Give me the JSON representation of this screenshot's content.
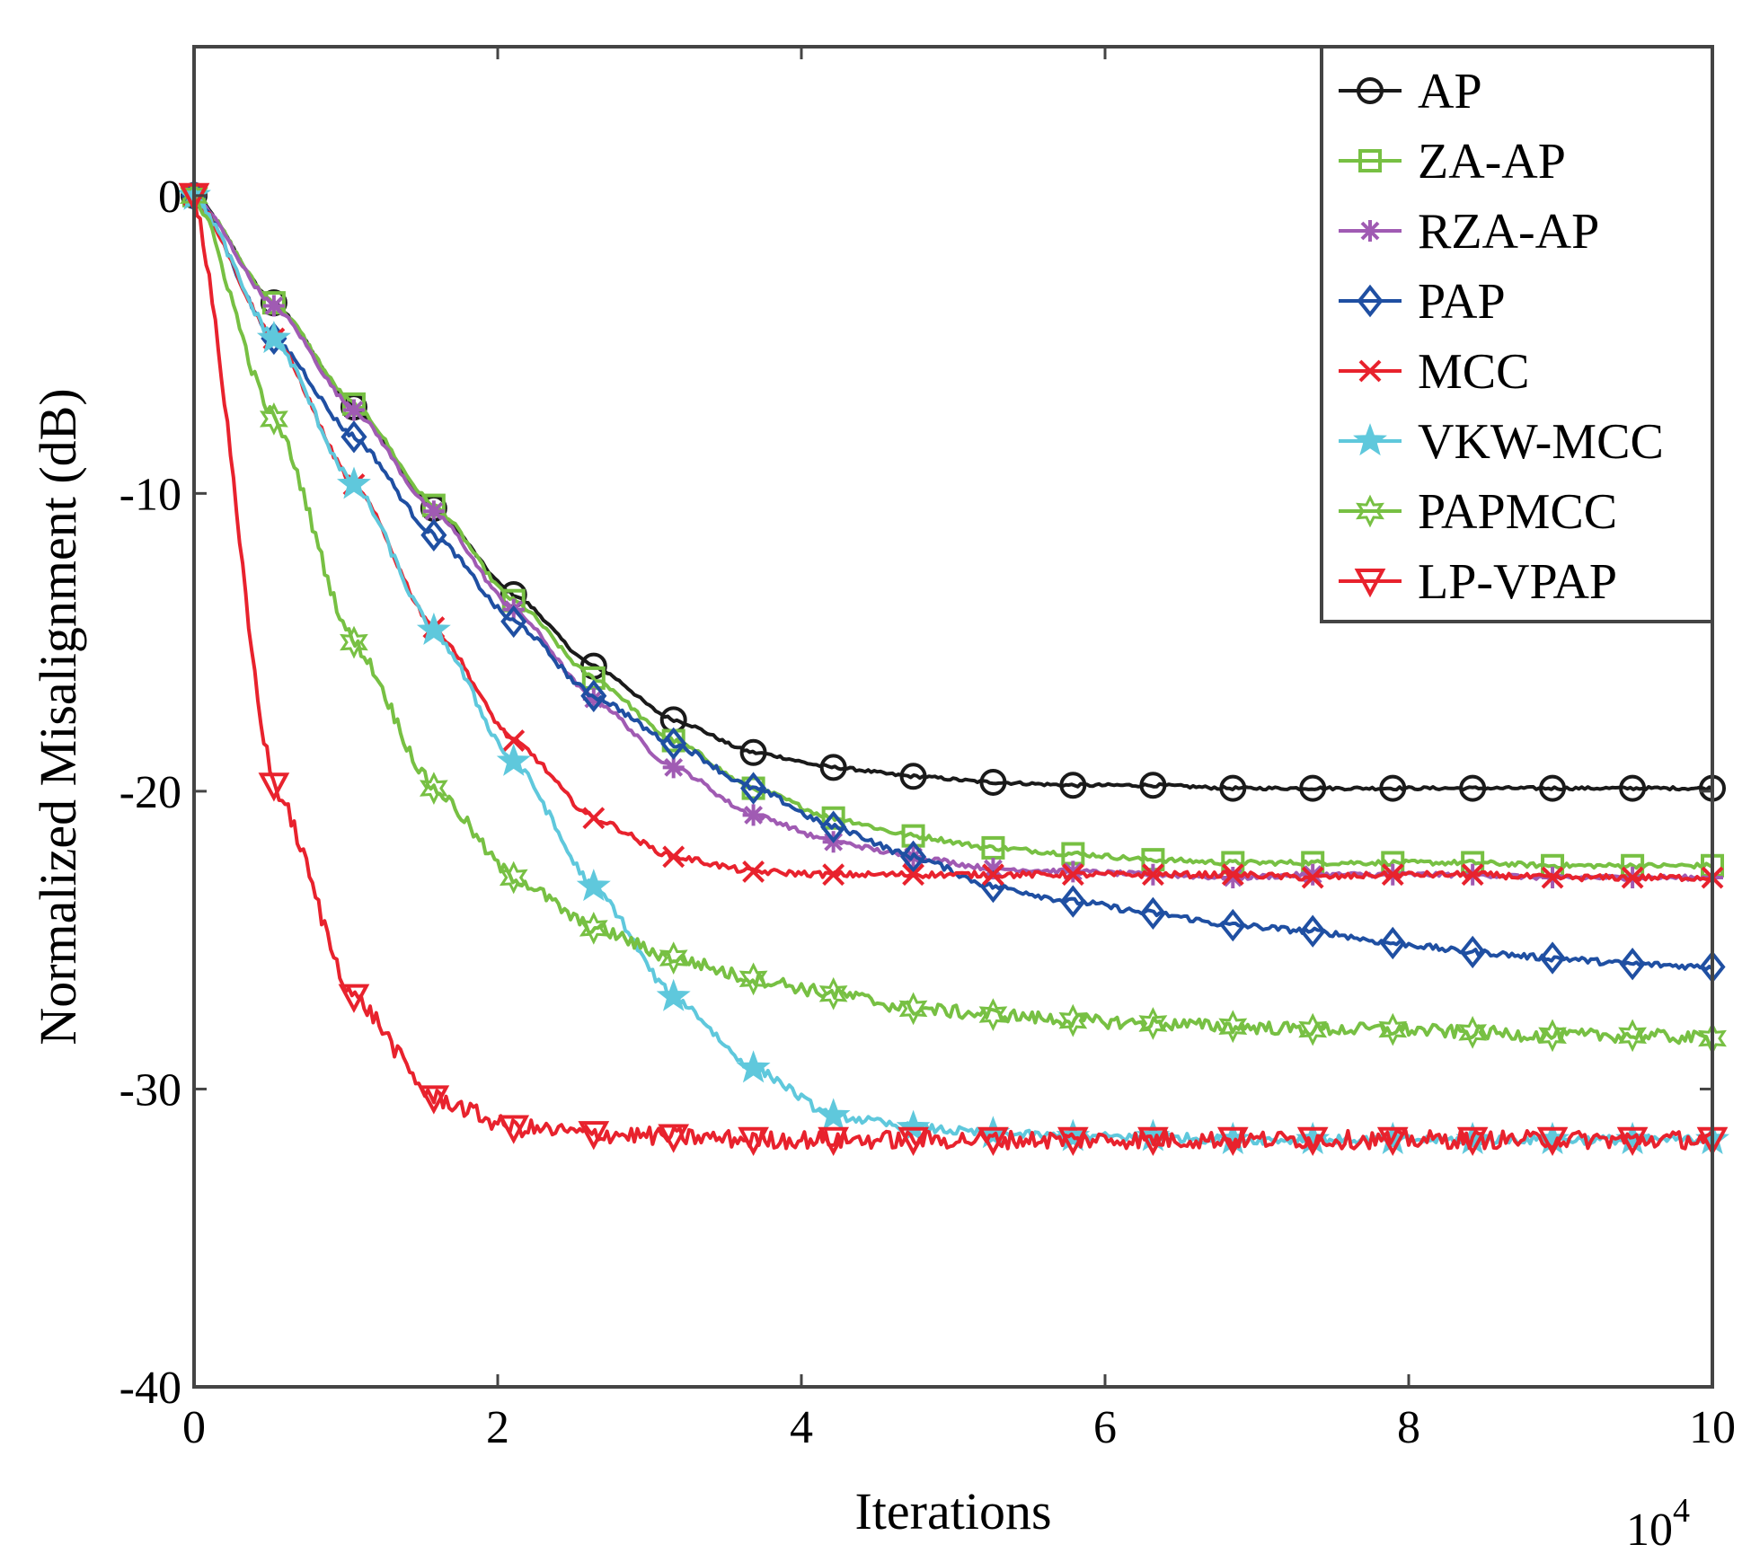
{
  "chart_data": {
    "type": "line",
    "title": "",
    "xlabel": "Iterations",
    "ylabel": "Normalized Misalignment (dB)",
    "x_multiplier": "10",
    "x_multiplier_exp": "4",
    "xlim": [
      0,
      10
    ],
    "ylim": [
      -40,
      5
    ],
    "xticks": [
      0,
      2,
      4,
      6,
      8,
      10
    ],
    "xtick_labels": [
      "0",
      "2",
      "4",
      "6",
      "8",
      "10"
    ],
    "yticks": [
      0,
      -10,
      -20,
      -30,
      -40
    ],
    "ytick_labels": [
      "0",
      "-10",
      "-20",
      "-30",
      "-40"
    ],
    "grid": false,
    "legend_position": "top-right",
    "marker_x": [
      0,
      0.526,
      1.053,
      1.579,
      2.105,
      2.632,
      3.158,
      3.684,
      4.211,
      4.737,
      5.263,
      5.789,
      6.316,
      6.842,
      7.368,
      7.895,
      8.421,
      8.947,
      9.474,
      10
    ],
    "series": [
      {
        "name": "AP",
        "color": "#1a1a1a",
        "marker": "circle",
        "noise": 0.05,
        "values": [
          0,
          -3.6,
          -7.1,
          -10.5,
          -13.4,
          -15.8,
          -17.6,
          -18.7,
          -19.2,
          -19.5,
          -19.7,
          -19.8,
          -19.8,
          -19.9,
          -19.9,
          -19.9,
          -19.9,
          -19.9,
          -19.9,
          -19.9
        ]
      },
      {
        "name": "ZA-AP",
        "color": "#77c043",
        "marker": "square",
        "noise": 0.08,
        "values": [
          0,
          -3.6,
          -7.0,
          -10.4,
          -13.6,
          -16.2,
          -18.3,
          -19.9,
          -20.9,
          -21.5,
          -21.9,
          -22.1,
          -22.3,
          -22.4,
          -22.4,
          -22.4,
          -22.4,
          -22.5,
          -22.5,
          -22.5
        ]
      },
      {
        "name": "RZA-AP",
        "color": "#a05bb3",
        "marker": "asterisk",
        "noise": 0.08,
        "values": [
          0,
          -3.7,
          -7.2,
          -10.6,
          -13.9,
          -16.9,
          -19.2,
          -20.8,
          -21.7,
          -22.2,
          -22.6,
          -22.7,
          -22.8,
          -22.9,
          -22.8,
          -22.8,
          -22.8,
          -22.9,
          -22.9,
          -22.9
        ]
      },
      {
        "name": "PAP",
        "color": "#1f4fa2",
        "marker": "diamond",
        "noise": 0.1,
        "values": [
          0,
          -4.8,
          -8.1,
          -11.4,
          -14.3,
          -16.8,
          -18.4,
          -19.9,
          -21.2,
          -22.2,
          -23.2,
          -23.7,
          -24.1,
          -24.5,
          -24.7,
          -25.1,
          -25.4,
          -25.6,
          -25.8,
          -25.9
        ]
      },
      {
        "name": "MCC",
        "color": "#e8222d",
        "marker": "x",
        "noise": 0.1,
        "values": [
          0,
          -4.8,
          -9.7,
          -14.5,
          -18.3,
          -20.9,
          -22.2,
          -22.7,
          -22.8,
          -22.8,
          -22.8,
          -22.8,
          -22.8,
          -22.8,
          -22.9,
          -22.8,
          -22.8,
          -22.9,
          -22.9,
          -22.9
        ]
      },
      {
        "name": "VKW-MCC",
        "color": "#5fc8dc",
        "marker": "star5",
        "noise": 0.15,
        "values": [
          0,
          -4.8,
          -9.7,
          -14.6,
          -19.0,
          -23.2,
          -26.9,
          -29.3,
          -30.9,
          -31.3,
          -31.5,
          -31.6,
          -31.6,
          -31.7,
          -31.7,
          -31.7,
          -31.7,
          -31.7,
          -31.7,
          -31.7
        ]
      },
      {
        "name": "PAPMCC",
        "color": "#77c043",
        "marker": "star6",
        "noise": 0.22,
        "values": [
          0,
          -7.5,
          -15.0,
          -19.9,
          -22.9,
          -24.6,
          -25.6,
          -26.3,
          -26.8,
          -27.3,
          -27.5,
          -27.7,
          -27.8,
          -27.9,
          -28.0,
          -28.0,
          -28.1,
          -28.2,
          -28.2,
          -28.3
        ]
      },
      {
        "name": "LP-VPAP",
        "color": "#e8222d",
        "marker": "triangle-down",
        "noise": 0.3,
        "values": [
          0,
          -19.8,
          -26.9,
          -30.3,
          -31.3,
          -31.5,
          -31.6,
          -31.7,
          -31.7,
          -31.7,
          -31.7,
          -31.7,
          -31.7,
          -31.7,
          -31.7,
          -31.7,
          -31.7,
          -31.7,
          -31.7,
          -31.7
        ]
      }
    ]
  }
}
